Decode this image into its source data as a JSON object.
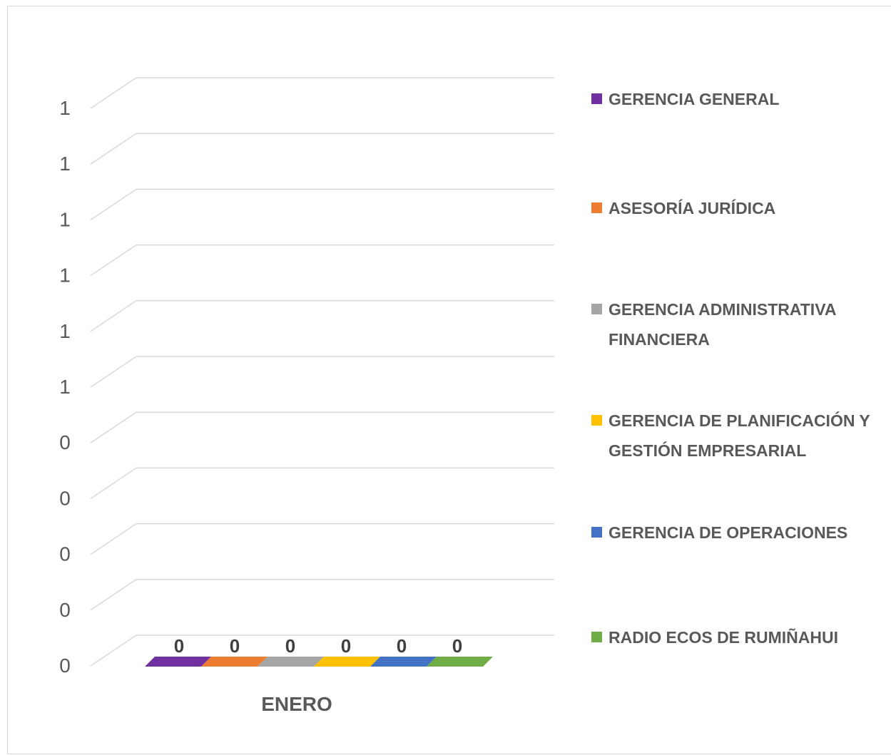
{
  "chart_data": {
    "type": "bar",
    "subtype": "3d-clustered-column",
    "title": "",
    "categories": [
      "ENERO"
    ],
    "y_tick_labels": [
      "0",
      "0",
      "0",
      "0",
      "0",
      "1",
      "1",
      "1",
      "1",
      "1",
      "1"
    ],
    "ylim": [
      0,
      1.2
    ],
    "grid": true,
    "legend_position": "right",
    "series": [
      {
        "name": "GERENCIA GENERAL",
        "values": [
          0
        ],
        "color": "#7030a0"
      },
      {
        "name": "ASESORÍA JURÍDICA",
        "values": [
          0
        ],
        "color": "#ed7d31"
      },
      {
        "name": "GERENCIA ADMINISTRATIVA FINANCIERA",
        "values": [
          0
        ],
        "color": "#a5a5a5"
      },
      {
        "name": "GERENCIA DE PLANIFICACIÓN Y GESTIÓN EMPRESARIAL",
        "values": [
          0
        ],
        "color": "#ffc000"
      },
      {
        "name": "GERENCIA DE OPERACIONES",
        "values": [
          0
        ],
        "color": "#4472c4"
      },
      {
        "name": "RADIO ECOS DE RUMIÑAHUI",
        "values": [
          0
        ],
        "color": "#70ad47"
      }
    ],
    "data_labels": [
      "0",
      "0",
      "0",
      "0",
      "0",
      "0"
    ]
  }
}
